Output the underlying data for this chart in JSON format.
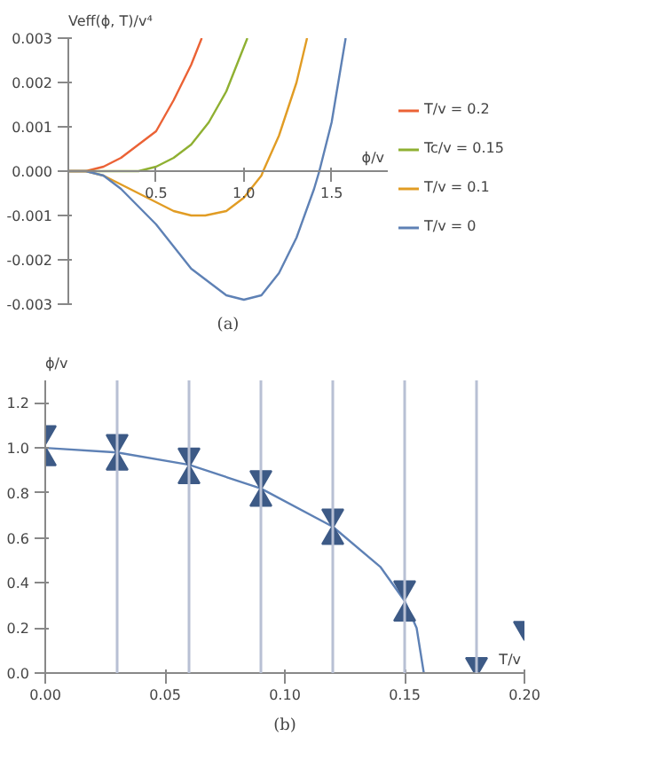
{
  "chart_data": [
    {
      "type": "line",
      "xlabel": "ϕ/v",
      "ylabel": "Veff(ϕ, T)/v⁴",
      "annotations": [
        "(a)"
      ],
      "xlim": [
        0,
        1.82
      ],
      "ylim": [
        -0.003,
        0.003
      ],
      "xticks": [
        0.5,
        {
          "value": 1.0,
          "label": "1.0"
        },
        1.5
      ],
      "yticks": [
        {
          "value": -0.003,
          "label": "-0.003"
        },
        {
          "value": -0.002,
          "label": "-0.002"
        },
        {
          "value": -0.001,
          "label": "-0.001"
        },
        {
          "value": 0,
          "label": "0.000"
        },
        {
          "value": 0.001,
          "label": "0.001"
        },
        {
          "value": 0.002,
          "label": "0.002"
        },
        {
          "value": 0.003,
          "label": "0.003"
        }
      ],
      "grid": false,
      "legend": "right",
      "series": [
        {
          "name": "T/v = 0.2",
          "color": "#eb6235",
          "x": [
            0,
            0.1,
            0.2,
            0.3,
            0.4,
            0.5,
            0.6,
            0.7,
            0.76
          ],
          "values": [
            0,
            0,
            0.0001,
            0.0003,
            0.0006,
            0.0009,
            0.0016,
            0.0024,
            0.003
          ]
        },
        {
          "name": "Tc/v = 0.15",
          "color": "#8fb032",
          "x": [
            0,
            0.1,
            0.2,
            0.3,
            0.4,
            0.5,
            0.6,
            0.7,
            0.8,
            0.9,
            1.0,
            1.02
          ],
          "values": [
            0,
            0,
            0,
            0,
            0,
            0.0001,
            0.0003,
            0.0006,
            0.0011,
            0.0018,
            0.0028,
            0.003
          ]
        },
        {
          "name": "T/v = 0.1",
          "color": "#e19c24",
          "x": [
            0,
            0.1,
            0.2,
            0.3,
            0.4,
            0.5,
            0.6,
            0.7,
            0.78,
            0.9,
            1.0,
            1.1,
            1.11,
            1.2,
            1.3,
            1.36
          ],
          "values": [
            0,
            0,
            -0.0001,
            -0.0003,
            -0.0005,
            -0.0007,
            -0.0009,
            -0.001,
            -0.001,
            -0.0009,
            -0.0006,
            -0.0001,
            0,
            0.0008,
            0.002,
            0.003
          ]
        },
        {
          "name": "T/v = 0",
          "color": "#5e81b5",
          "x": [
            0,
            0.1,
            0.2,
            0.3,
            0.4,
            0.5,
            0.6,
            0.7,
            0.8,
            0.9,
            1.0,
            1.1,
            1.2,
            1.3,
            1.4,
            1.43,
            1.5,
            1.58
          ],
          "values": [
            0,
            0,
            -0.0001,
            -0.0004,
            -0.0008,
            -0.0012,
            -0.0017,
            -0.0022,
            -0.0025,
            -0.0028,
            -0.0029,
            -0.0028,
            -0.0023,
            -0.0015,
            -0.0004,
            0,
            0.0011,
            0.003
          ]
        }
      ]
    },
    {
      "type": "line",
      "xlabel": "T/v",
      "ylabel": "ϕ/v",
      "annotations": [
        "(b)"
      ],
      "xlim": [
        0,
        0.2
      ],
      "ylim": [
        0,
        1.3
      ],
      "xticks": [
        {
          "value": 0,
          "label": "0.00"
        },
        0.05,
        {
          "value": 0.1,
          "label": "0.10"
        },
        0.15,
        {
          "value": 0.2,
          "label": "0.20"
        }
      ],
      "yticks": [
        {
          "value": 0,
          "label": "0.0"
        },
        0.2,
        0.4,
        0.6,
        0.8,
        {
          "value": 1.0,
          "label": "1.0"
        },
        1.2
      ],
      "grid": false,
      "ref_lines": [
        {
          "axis": "x",
          "value": 0.03,
          "color": "#b8c0d4"
        },
        {
          "axis": "x",
          "value": 0.06,
          "color": "#b8c0d4"
        },
        {
          "axis": "x",
          "value": 0.09,
          "color": "#b8c0d4"
        },
        {
          "axis": "x",
          "value": 0.12,
          "color": "#b8c0d4"
        },
        {
          "axis": "x",
          "value": 0.15,
          "color": "#b8c0d4"
        },
        {
          "axis": "x",
          "value": 0.18,
          "color": "#b8c0d4"
        }
      ],
      "series": [
        {
          "color": "#5e81b5",
          "x": [
            0,
            0.03,
            0.06,
            0.09,
            0.12,
            0.14,
            0.15,
            0.155,
            0.158
          ],
          "values": [
            1.0,
            0.98,
            0.925,
            0.82,
            0.65,
            0.47,
            0.32,
            0.2,
            0
          ]
        },
        {
          "type": "scatter",
          "marker": "triangle",
          "color": "#3d5a86",
          "x": [
            0,
            0.03,
            0.06,
            0.09,
            0.12,
            0.15,
            0.18,
            0.2
          ],
          "values": [
            1.07,
            1.03,
            0.97,
            0.87,
            0.7,
            0.38,
            0.04,
            0.2
          ]
        },
        {
          "type": "scatter",
          "marker": "triangle",
          "color": "#3d5a86",
          "x": [
            0,
            0.03,
            0.06,
            0.09,
            0.12,
            0.15
          ],
          "values": [
            0.95,
            0.93,
            0.87,
            0.77,
            0.6,
            0.26
          ]
        }
      ]
    }
  ]
}
